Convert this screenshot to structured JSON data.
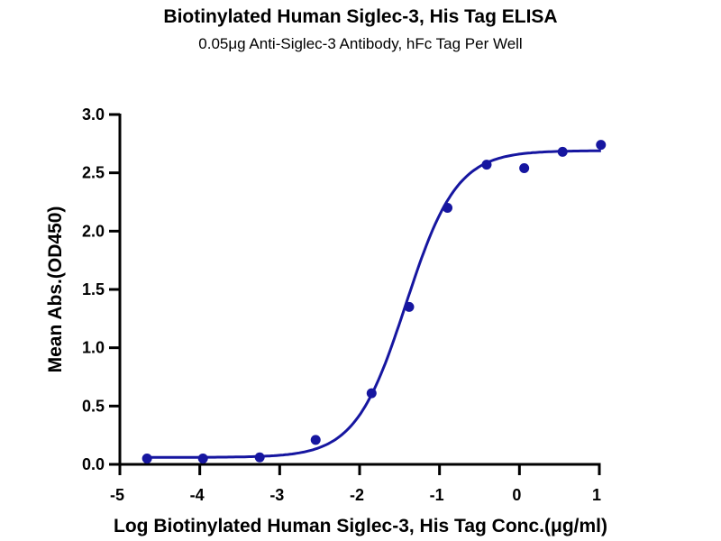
{
  "chart_data": {
    "type": "scatter",
    "title": "Biotinylated Human Siglec-3, His Tag ELISA",
    "subtitle": "0.05μg Anti-Siglec-3 Antibody, hFc Tag Per Well",
    "xlabel": "Log Biotinylated Human Siglec-3, His Tag Conc.(μg/ml)",
    "ylabel": "Mean Abs.(OD450)",
    "xlim": [
      -5,
      1
    ],
    "ylim": [
      0,
      3.0
    ],
    "xticks": [
      "-5",
      "-4",
      "-3",
      "-2",
      "-1",
      "0",
      "1"
    ],
    "yticks": [
      "0.0",
      "0.5",
      "1.0",
      "1.5",
      "2.0",
      "2.5",
      "3.0"
    ],
    "grid": false,
    "legend": "none",
    "color": "#1616a0",
    "series": [
      {
        "x": [
          -4.66,
          -3.96,
          -3.25,
          -2.55,
          -1.85,
          -1.38,
          -0.9,
          -0.41,
          0.06,
          0.54,
          1.02
        ],
        "y": [
          0.05,
          0.05,
          0.06,
          0.21,
          0.61,
          1.35,
          2.2,
          2.57,
          2.54,
          2.68,
          2.74
        ]
      }
    ],
    "fit_curve": {
      "model": "4PL",
      "bottom": 0.06,
      "top": 2.69,
      "logEC50": -1.42,
      "hill": 1.37
    }
  }
}
